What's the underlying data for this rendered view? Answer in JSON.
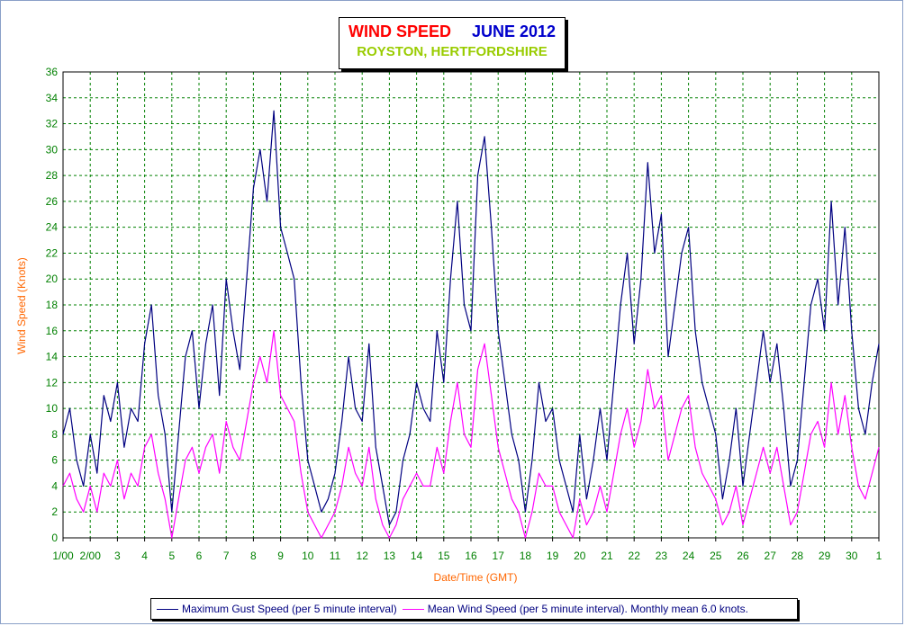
{
  "title": {
    "main": "WIND SPEED",
    "period": "JUNE 2012",
    "location": "ROYSTON, HERTFORDSHIRE"
  },
  "legend": {
    "gust": "Maximum Gust Speed (per 5 minute interval)",
    "mean": "Mean Wind Speed (per 5 minute interval). Monthly mean 6.0 knots."
  },
  "chart_data": {
    "type": "line",
    "title": "WIND SPEED JUNE 2012",
    "subtitle": "ROYSTON, HERTFORDSHIRE",
    "xlabel": "Date/Time (GMT)",
    "ylabel": "Wind Speed (Knots)",
    "ylim": [
      0,
      36
    ],
    "y_ticks": [
      0,
      2,
      4,
      6,
      8,
      10,
      12,
      14,
      16,
      18,
      20,
      22,
      24,
      26,
      28,
      30,
      32,
      34,
      36
    ],
    "x_unit": "day",
    "xlim": [
      1,
      31
    ],
    "x_ticks": [
      1,
      2,
      3,
      4,
      5,
      6,
      7,
      8,
      9,
      10,
      11,
      12,
      13,
      14,
      15,
      16,
      17,
      18,
      19,
      20,
      21,
      22,
      23,
      24,
      25,
      26,
      27,
      28,
      29,
      30,
      31
    ],
    "x_tick_labels": [
      "1/00",
      "2/00",
      "3",
      "4",
      "5",
      "6",
      "7",
      "8",
      "9",
      "10",
      "11",
      "12",
      "13",
      "14",
      "15",
      "16",
      "17",
      "18",
      "19",
      "20",
      "21",
      "22",
      "23",
      "24",
      "25",
      "26",
      "27",
      "28",
      "29",
      "30",
      "1"
    ],
    "grid": true,
    "legend_position": "bottom",
    "colors": {
      "gust": "#000080",
      "mean": "#ff00ff",
      "grid": "#008000",
      "tick": "#008000",
      "axis_label": "#ff6600"
    },
    "series": [
      {
        "name": "Maximum Gust Speed (per 5 minute interval)",
        "x": [
          1,
          1.25,
          1.5,
          1.75,
          2,
          2.25,
          2.5,
          2.75,
          3,
          3.25,
          3.5,
          3.75,
          4,
          4.25,
          4.5,
          4.75,
          5,
          5.25,
          5.5,
          5.75,
          6,
          6.25,
          6.5,
          6.75,
          7,
          7.25,
          7.5,
          7.75,
          8,
          8.25,
          8.5,
          8.75,
          9,
          9.25,
          9.5,
          9.75,
          10,
          10.25,
          10.5,
          10.75,
          11,
          11.25,
          11.5,
          11.75,
          12,
          12.25,
          12.5,
          12.75,
          13,
          13.25,
          13.5,
          13.75,
          14,
          14.25,
          14.5,
          14.75,
          15,
          15.25,
          15.5,
          15.75,
          16,
          16.25,
          16.5,
          16.75,
          17,
          17.25,
          17.5,
          17.75,
          18,
          18.25,
          18.5,
          18.75,
          19,
          19.25,
          19.5,
          19.75,
          20,
          20.25,
          20.5,
          20.75,
          21,
          21.25,
          21.5,
          21.75,
          22,
          22.25,
          22.5,
          22.75,
          23,
          23.25,
          23.5,
          23.75,
          24,
          24.25,
          24.5,
          24.75,
          25,
          25.25,
          25.5,
          25.75,
          26,
          26.25,
          26.5,
          26.75,
          27,
          27.25,
          27.5,
          27.75,
          28,
          28.25,
          28.5,
          28.75,
          29,
          29.25,
          29.5,
          29.75,
          30,
          30.25,
          30.5,
          30.75,
          31
        ],
        "values": [
          8,
          10,
          6,
          4,
          8,
          5,
          11,
          9,
          12,
          7,
          10,
          9,
          15,
          18,
          11,
          8,
          2,
          8,
          14,
          16,
          10,
          15,
          18,
          11,
          20,
          16,
          13,
          20,
          27,
          30,
          26,
          33,
          24,
          22,
          20,
          12,
          6,
          4,
          2,
          3,
          5,
          9,
          14,
          10,
          9,
          15,
          7,
          4,
          1,
          2,
          6,
          8,
          12,
          10,
          9,
          16,
          12,
          20,
          26,
          18,
          16,
          28,
          31,
          24,
          16,
          12,
          8,
          6,
          2,
          6,
          12,
          9,
          10,
          6,
          4,
          2,
          8,
          3,
          6,
          10,
          6,
          12,
          18,
          22,
          15,
          20,
          29,
          22,
          25,
          14,
          18,
          22,
          24,
          16,
          12,
          10,
          8,
          3,
          6,
          10,
          4,
          8,
          12,
          16,
          12,
          15,
          10,
          4,
          6,
          12,
          18,
          20,
          16,
          26,
          18,
          24,
          16,
          10,
          8,
          12,
          15
        ]
      },
      {
        "name": "Mean Wind Speed (per 5 minute interval). Monthly mean 6.0 knots.",
        "x": [
          1,
          1.25,
          1.5,
          1.75,
          2,
          2.25,
          2.5,
          2.75,
          3,
          3.25,
          3.5,
          3.75,
          4,
          4.25,
          4.5,
          4.75,
          5,
          5.25,
          5.5,
          5.75,
          6,
          6.25,
          6.5,
          6.75,
          7,
          7.25,
          7.5,
          7.75,
          8,
          8.25,
          8.5,
          8.75,
          9,
          9.25,
          9.5,
          9.75,
          10,
          10.25,
          10.5,
          10.75,
          11,
          11.25,
          11.5,
          11.75,
          12,
          12.25,
          12.5,
          12.75,
          13,
          13.25,
          13.5,
          13.75,
          14,
          14.25,
          14.5,
          14.75,
          15,
          15.25,
          15.5,
          15.75,
          16,
          16.25,
          16.5,
          16.75,
          17,
          17.25,
          17.5,
          17.75,
          18,
          18.25,
          18.5,
          18.75,
          19,
          19.25,
          19.5,
          19.75,
          20,
          20.25,
          20.5,
          20.75,
          21,
          21.25,
          21.5,
          21.75,
          22,
          22.25,
          22.5,
          22.75,
          23,
          23.25,
          23.5,
          23.75,
          24,
          24.25,
          24.5,
          24.75,
          25,
          25.25,
          25.5,
          25.75,
          26,
          26.25,
          26.5,
          26.75,
          27,
          27.25,
          27.5,
          27.75,
          28,
          28.25,
          28.5,
          28.75,
          29,
          29.25,
          29.5,
          29.75,
          30,
          30.25,
          30.5,
          30.75,
          31
        ],
        "values": [
          4,
          5,
          3,
          2,
          4,
          2,
          5,
          4,
          6,
          3,
          5,
          4,
          7,
          8,
          5,
          3,
          0,
          3,
          6,
          7,
          5,
          7,
          8,
          5,
          9,
          7,
          6,
          9,
          12,
          14,
          12,
          16,
          11,
          10,
          9,
          5,
          2,
          1,
          0,
          1,
          2,
          4,
          7,
          5,
          4,
          7,
          3,
          1,
          0,
          1,
          3,
          4,
          5,
          4,
          4,
          7,
          5,
          9,
          12,
          8,
          7,
          13,
          15,
          11,
          7,
          5,
          3,
          2,
          0,
          2,
          5,
          4,
          4,
          2,
          1,
          0,
          3,
          1,
          2,
          4,
          2,
          5,
          8,
          10,
          7,
          9,
          13,
          10,
          11,
          6,
          8,
          10,
          11,
          7,
          5,
          4,
          3,
          1,
          2,
          4,
          1,
          3,
          5,
          7,
          5,
          7,
          4,
          1,
          2,
          5,
          8,
          9,
          7,
          12,
          8,
          11,
          7,
          4,
          3,
          5,
          7
        ]
      }
    ]
  }
}
